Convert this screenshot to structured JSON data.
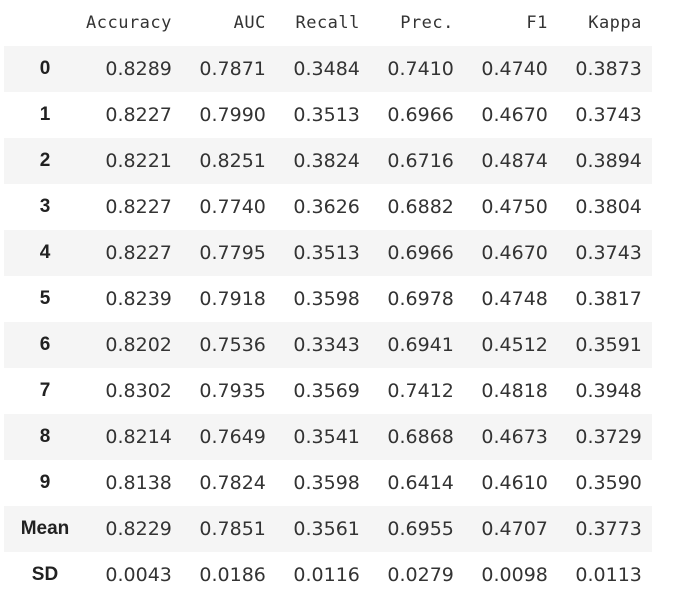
{
  "table": {
    "columns": [
      "Accuracy",
      "AUC",
      "Recall",
      "Prec.",
      "F1",
      "Kappa"
    ],
    "rows": [
      {
        "index": "0",
        "values": [
          "0.8289",
          "0.7871",
          "0.3484",
          "0.7410",
          "0.4740",
          "0.3873"
        ]
      },
      {
        "index": "1",
        "values": [
          "0.8227",
          "0.7990",
          "0.3513",
          "0.6966",
          "0.4670",
          "0.3743"
        ]
      },
      {
        "index": "2",
        "values": [
          "0.8221",
          "0.8251",
          "0.3824",
          "0.6716",
          "0.4874",
          "0.3894"
        ]
      },
      {
        "index": "3",
        "values": [
          "0.8227",
          "0.7740",
          "0.3626",
          "0.6882",
          "0.4750",
          "0.3804"
        ]
      },
      {
        "index": "4",
        "values": [
          "0.8227",
          "0.7795",
          "0.3513",
          "0.6966",
          "0.4670",
          "0.3743"
        ]
      },
      {
        "index": "5",
        "values": [
          "0.8239",
          "0.7918",
          "0.3598",
          "0.6978",
          "0.4748",
          "0.3817"
        ]
      },
      {
        "index": "6",
        "values": [
          "0.8202",
          "0.7536",
          "0.3343",
          "0.6941",
          "0.4512",
          "0.3591"
        ]
      },
      {
        "index": "7",
        "values": [
          "0.8302",
          "0.7935",
          "0.3569",
          "0.7412",
          "0.4818",
          "0.3948"
        ]
      },
      {
        "index": "8",
        "values": [
          "0.8214",
          "0.7649",
          "0.3541",
          "0.6868",
          "0.4673",
          "0.3729"
        ]
      },
      {
        "index": "9",
        "values": [
          "0.8138",
          "0.7824",
          "0.3598",
          "0.6414",
          "0.4610",
          "0.3590"
        ]
      },
      {
        "index": "Mean",
        "values": [
          "0.8229",
          "0.7851",
          "0.3561",
          "0.6955",
          "0.4707",
          "0.3773"
        ]
      },
      {
        "index": "SD",
        "values": [
          "0.0043",
          "0.0186",
          "0.0116",
          "0.0279",
          "0.0098",
          "0.0113"
        ]
      }
    ]
  },
  "colors": {
    "stripe": "#f5f5f5",
    "background": "#ffffff",
    "text": "#212121"
  }
}
